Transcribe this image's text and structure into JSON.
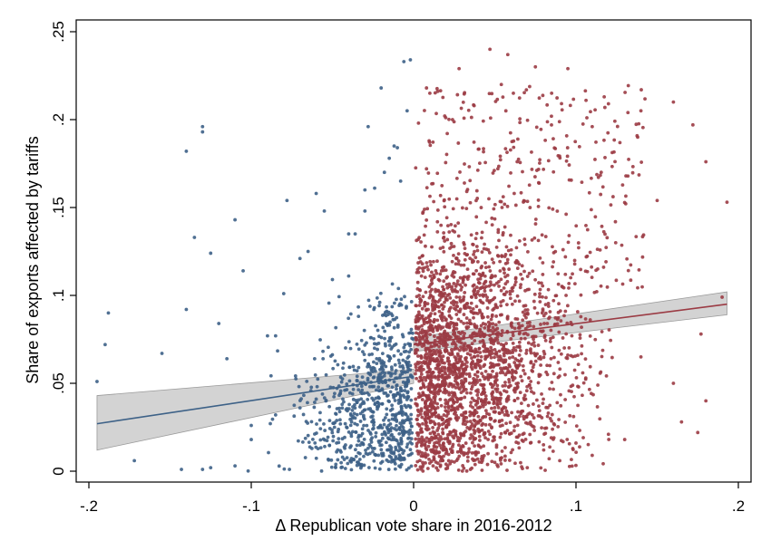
{
  "chart_data": {
    "type": "scatter",
    "xlabel": "Δ Republican vote share in 2016-2012",
    "ylabel": "Share of exports affected by tariffs",
    "xlim": [
      -0.2,
      0.2
    ],
    "ylim": [
      0,
      0.25
    ],
    "x_ticks": [
      -0.2,
      -0.1,
      0,
      0.1,
      0.2
    ],
    "x_tick_labels": [
      "-.2",
      "-.1",
      "0",
      ".1",
      ".2"
    ],
    "y_ticks": [
      0,
      0.05,
      0.1,
      0.15,
      0.2,
      0.25
    ],
    "y_tick_labels": [
      "0",
      ".05",
      ".1",
      ".15",
      ".2",
      ".25"
    ],
    "grid": false,
    "colors": {
      "left": "#3d6187",
      "right": "#9b3b44",
      "band": "#c8c8c8"
    },
    "series": [
      {
        "side": "left",
        "x_range": [
          -0.2,
          0
        ],
        "points": [
          [
            -0.195,
            0.051
          ],
          [
            -0.19,
            0.072
          ],
          [
            -0.188,
            0.09
          ],
          [
            -0.172,
            0.006
          ],
          [
            -0.155,
            0.067
          ],
          [
            -0.14,
            0.092
          ],
          [
            -0.14,
            0.182
          ],
          [
            -0.13,
            0.193
          ],
          [
            -0.13,
            0.196
          ],
          [
            -0.135,
            0.133
          ],
          [
            -0.125,
            0.124
          ],
          [
            -0.12,
            0.084
          ],
          [
            -0.115,
            0.064
          ],
          [
            -0.11,
            0.143
          ],
          [
            -0.105,
            0.114
          ],
          [
            -0.09,
            0.077
          ],
          [
            -0.085,
            0.077
          ],
          [
            -0.08,
            0.101
          ],
          [
            -0.078,
            0.154
          ],
          [
            -0.07,
            0.121
          ],
          [
            -0.065,
            0.125
          ],
          [
            -0.06,
            0.158
          ],
          [
            -0.055,
            0.148
          ],
          [
            -0.04,
            0.135
          ],
          [
            -0.036,
            0.135
          ],
          [
            -0.03,
            0.148
          ],
          [
            -0.028,
            0.196
          ],
          [
            -0.02,
            0.218
          ],
          [
            -0.015,
            0.178
          ],
          [
            -0.012,
            0.185
          ],
          [
            -0.01,
            0.184
          ],
          [
            -0.006,
            0.233
          ],
          [
            -0.002,
            0.234
          ],
          [
            -0.004,
            0.205
          ],
          [
            -0.008,
            0.165
          ],
          [
            -0.018,
            0.17
          ],
          [
            -0.024,
            0.161
          ],
          [
            -0.03,
            0.16
          ],
          [
            -0.04,
            0.111
          ],
          [
            -0.05,
            0.109
          ],
          [
            -0.143,
            0.001
          ],
          [
            -0.13,
            0.001
          ],
          [
            -0.125,
            0.002
          ],
          [
            -0.11,
            0.003
          ],
          [
            -0.1,
            0.018
          ],
          [
            -0.1,
            0.026
          ],
          [
            -0.085,
            0.032
          ],
          [
            -0.07,
            0.036
          ],
          [
            -0.06,
            0.041
          ],
          [
            -0.044,
            0.038
          ]
        ],
        "fit": {
          "x": [
            -0.195,
            0
          ],
          "y": [
            0.027,
            0.054
          ],
          "ci_low": [
            0.012,
            0.05
          ],
          "ci_high": [
            0.043,
            0.058
          ]
        }
      },
      {
        "side": "right",
        "x_range": [
          0,
          0.2
        ],
        "points": [
          [
            0.003,
            0.198
          ],
          [
            0.01,
            0.215
          ],
          [
            0.028,
            0.229
          ],
          [
            0.047,
            0.24
          ],
          [
            0.058,
            0.237
          ],
          [
            0.075,
            0.23
          ],
          [
            0.085,
            0.215
          ],
          [
            0.095,
            0.229
          ],
          [
            0.11,
            0.196
          ],
          [
            0.12,
            0.209
          ],
          [
            0.132,
            0.204
          ],
          [
            0.14,
            0.205
          ],
          [
            0.15,
            0.154
          ],
          [
            0.16,
            0.21
          ],
          [
            0.172,
            0.197
          ],
          [
            0.18,
            0.176
          ],
          [
            0.193,
            0.153
          ],
          [
            0.19,
            0.099
          ],
          [
            0.177,
            0.078
          ],
          [
            0.18,
            0.04
          ],
          [
            0.175,
            0.022
          ],
          [
            0.165,
            0.028
          ],
          [
            0.16,
            0.05
          ],
          [
            0.14,
            0.065
          ],
          [
            0.13,
            0.018
          ],
          [
            0.12,
            0.021
          ],
          [
            0.11,
            0.009
          ],
          [
            0.1,
            0.016
          ],
          [
            0.09,
            0.006
          ],
          [
            0.08,
            0.015
          ],
          [
            0.07,
            0.002
          ],
          [
            0.05,
            0.005
          ],
          [
            0.035,
            0.001
          ],
          [
            0.02,
            0.004
          ],
          [
            0.012,
            0.003
          ]
        ],
        "fit": {
          "x": [
            0,
            0.193
          ],
          "y": [
            0.072,
            0.095
          ],
          "ci_low": [
            0.068,
            0.089
          ],
          "ci_high": [
            0.076,
            0.102
          ]
        }
      }
    ]
  }
}
